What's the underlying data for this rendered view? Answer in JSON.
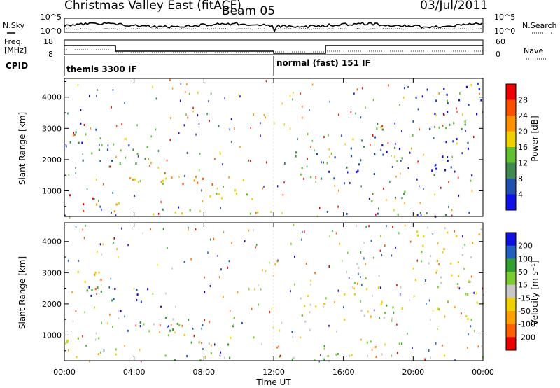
{
  "header": {
    "station": "Christmas Valley East (fitACF)",
    "beam": "Beam 05",
    "date": "03/Jul/2011"
  },
  "status_panels": {
    "noise_label": "N.Sky",
    "noise_ticks": [
      "10^5",
      "10^0"
    ],
    "noise_right_label": "N.Search",
    "noise_right_ticks": [
      "10^5",
      "10^0"
    ],
    "freq_label_line1": "Freq.",
    "freq_label_line2": "[MHz]",
    "freq_ticks": [
      "18",
      "8"
    ],
    "nave_label": "Nave",
    "nave_ticks": [
      "60",
      "0"
    ],
    "cpid_label": "CPID",
    "cpid_segments": [
      {
        "label": "themis 3300 IF",
        "start_hour": 0,
        "end_hour": 12
      },
      {
        "label": "normal (fast) 151 IF",
        "start_hour": 12,
        "end_hour": 24
      }
    ]
  },
  "chart_data": [
    {
      "type": "heatmap",
      "name": "power",
      "ylabel": "Slant Range [km]",
      "xlabel": "Time UT",
      "x_ticks": [
        "00:00",
        "04:00",
        "08:00",
        "12:00",
        "16:00",
        "20:00",
        "00:00"
      ],
      "xlim_hours": [
        0,
        24
      ],
      "y_ticks": [
        1000,
        2000,
        3000,
        4000
      ],
      "ylim": [
        180,
        4600
      ],
      "colorbar_label": "Power [dB]",
      "colorbar_ticks": [
        "28",
        "24",
        "20",
        "16",
        "12",
        "8",
        "4"
      ],
      "colorbar_range": [
        0,
        30
      ],
      "colors": [
        "#1010e8",
        "#2050b0",
        "#408a50",
        "#60c030",
        "#f0d000",
        "#ff9000",
        "#ff5000",
        "#ee0000"
      ],
      "regions": [
        {
          "t0": 0.0,
          "t1": 1.6,
          "r0": 450,
          "r1": 950,
          "level": 0.95
        },
        {
          "t0": 0.3,
          "t1": 3.5,
          "r0": 300,
          "r1": 700,
          "level": 0.7
        },
        {
          "t0": 3.0,
          "t1": 6.2,
          "r0": 1150,
          "r1": 1800,
          "level": 0.55
        },
        {
          "t0": 5.5,
          "t1": 10.5,
          "r0": 1200,
          "r1": 1600,
          "level": 0.75
        },
        {
          "t0": 5.0,
          "t1": 11.0,
          "r0": 700,
          "r1": 1050,
          "level": 0.6
        },
        {
          "t0": 5.0,
          "t1": 12.0,
          "r0": 200,
          "r1": 450,
          "level": 0.5
        },
        {
          "t0": 1.0,
          "t1": 5.5,
          "r0": 1800,
          "r1": 2600,
          "level": 0.3
        },
        {
          "t0": 0.0,
          "t1": 2.5,
          "r0": 2500,
          "r1": 3200,
          "level": 0.2
        },
        {
          "t0": 12.0,
          "t1": 24.0,
          "r0": 200,
          "r1": 420,
          "level": 0.25
        },
        {
          "t0": 12.3,
          "t1": 15.5,
          "r0": 1400,
          "r1": 2300,
          "level": 0.25
        },
        {
          "t0": 16.0,
          "t1": 19.5,
          "r0": 1500,
          "r1": 2600,
          "level": 0.2
        },
        {
          "t0": 17.0,
          "t1": 19.5,
          "r0": 600,
          "r1": 1100,
          "level": 0.35
        },
        {
          "t0": 16.5,
          "t1": 18.5,
          "r0": 2600,
          "r1": 3400,
          "level": 0.4
        },
        {
          "t0": 19.5,
          "t1": 23.0,
          "r0": 2700,
          "r1": 3400,
          "level": 0.3
        },
        {
          "t0": 21.0,
          "t1": 24.0,
          "r0": 1500,
          "r1": 2800,
          "level": 0.15
        },
        {
          "t0": 20.0,
          "t1": 24.0,
          "r0": 3400,
          "r1": 4500,
          "level": 0.05
        }
      ]
    },
    {
      "type": "heatmap",
      "name": "velocity",
      "ylabel": "Slant Range [km]",
      "xlabel": "Time UT",
      "x_ticks": [
        "00:00",
        "04:00",
        "08:00",
        "12:00",
        "16:00",
        "20:00",
        "00:00"
      ],
      "xlim_hours": [
        0,
        24
      ],
      "y_ticks": [
        1000,
        2000,
        3000,
        4000
      ],
      "ylim": [
        180,
        4600
      ],
      "colorbar_label": "Velocity [m s⁻¹]",
      "colorbar_ticks": [
        "200",
        "100",
        "50",
        "15",
        "-15",
        "-50",
        "-100",
        "-200"
      ],
      "colorbar_range": [
        -250,
        250
      ],
      "colors": [
        "#e80000",
        "#ff6000",
        "#ffa000",
        "#f0d000",
        "#c8c8c8",
        "#7acc30",
        "#30a030",
        "#2060c0",
        "#1010e0"
      ],
      "regions": [
        {
          "t0": 0.0,
          "t1": 3.5,
          "r0": 300,
          "r1": 1000,
          "level": 0.5
        },
        {
          "t0": 3.0,
          "t1": 6.2,
          "r0": 1150,
          "r1": 1800,
          "level": 0.7
        },
        {
          "t0": 5.5,
          "t1": 10.5,
          "r0": 1200,
          "r1": 1600,
          "level": 0.65
        },
        {
          "t0": 5.0,
          "t1": 11.0,
          "r0": 700,
          "r1": 1050,
          "level": 0.5
        },
        {
          "t0": 5.0,
          "t1": 12.0,
          "r0": 200,
          "r1": 450,
          "level": 0.65
        },
        {
          "t0": 1.0,
          "t1": 5.5,
          "r0": 1800,
          "r1": 2600,
          "level": 0.85
        },
        {
          "t0": 0.0,
          "t1": 2.5,
          "r0": 2500,
          "r1": 3200,
          "level": 0.3
        },
        {
          "t0": 12.0,
          "t1": 24.0,
          "r0": 200,
          "r1": 420,
          "level": 0.55
        },
        {
          "t0": 12.3,
          "t1": 15.5,
          "r0": 1400,
          "r1": 2300,
          "level": 0.45
        },
        {
          "t0": 16.0,
          "t1": 19.5,
          "r0": 1500,
          "r1": 2600,
          "level": 0.45
        },
        {
          "t0": 17.0,
          "t1": 19.5,
          "r0": 600,
          "r1": 1100,
          "level": 0.5
        },
        {
          "t0": 16.5,
          "t1": 18.5,
          "r0": 2600,
          "r1": 3400,
          "level": 0.5
        },
        {
          "t0": 19.5,
          "t1": 23.0,
          "r0": 2700,
          "r1": 3400,
          "level": 0.5
        },
        {
          "t0": 21.0,
          "t1": 24.0,
          "r0": 1500,
          "r1": 2800,
          "level": 0.5
        },
        {
          "t0": 20.0,
          "t1": 24.0,
          "r0": 3400,
          "r1": 4500,
          "level": 0.45
        }
      ]
    }
  ]
}
